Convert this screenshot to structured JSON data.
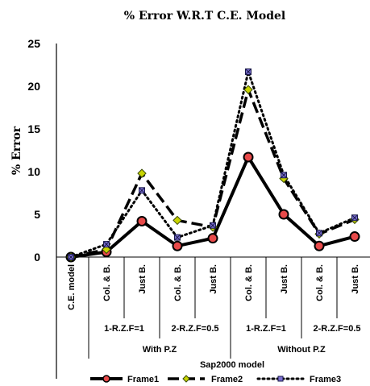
{
  "chart_data": {
    "type": "line",
    "title": "% Error W.R.T C.E. Model",
    "ylabel": "% Error",
    "xlabel": "Sap2000 model",
    "ylim": [
      0,
      25
    ],
    "yticks": [
      "0",
      "5",
      "10",
      "15",
      "20",
      "25"
    ],
    "grid": false,
    "legend_position": "bottom",
    "categories": [
      "C.E. model",
      "Col. & B.",
      "Just B.",
      "Col. & B.",
      "Just B.",
      "Col. & B.",
      "Just B.",
      "Col. & B.",
      "Just B."
    ],
    "subgroups": [
      "1-R.Z.F=1",
      "2-R.Z.F=0.5",
      "1-R.Z.F=1",
      "2-R.Z.F=0.5"
    ],
    "groups": [
      "With P.Z",
      "Without P.Z"
    ],
    "series": [
      {
        "name": "Frame1",
        "values": [
          0,
          0.6,
          4.2,
          1.3,
          2.2,
          11.7,
          5.0,
          1.3,
          2.4
        ],
        "color": "#000000"
      },
      {
        "name": "Frame2",
        "values": [
          0,
          0.9,
          9.8,
          4.3,
          3.5,
          19.6,
          9.2,
          2.7,
          4.4
        ],
        "color": "#000000"
      },
      {
        "name": "Frame3",
        "values": [
          0,
          1.5,
          7.8,
          2.3,
          3.7,
          21.7,
          9.6,
          2.8,
          4.6
        ],
        "color": "#000000"
      }
    ]
  }
}
